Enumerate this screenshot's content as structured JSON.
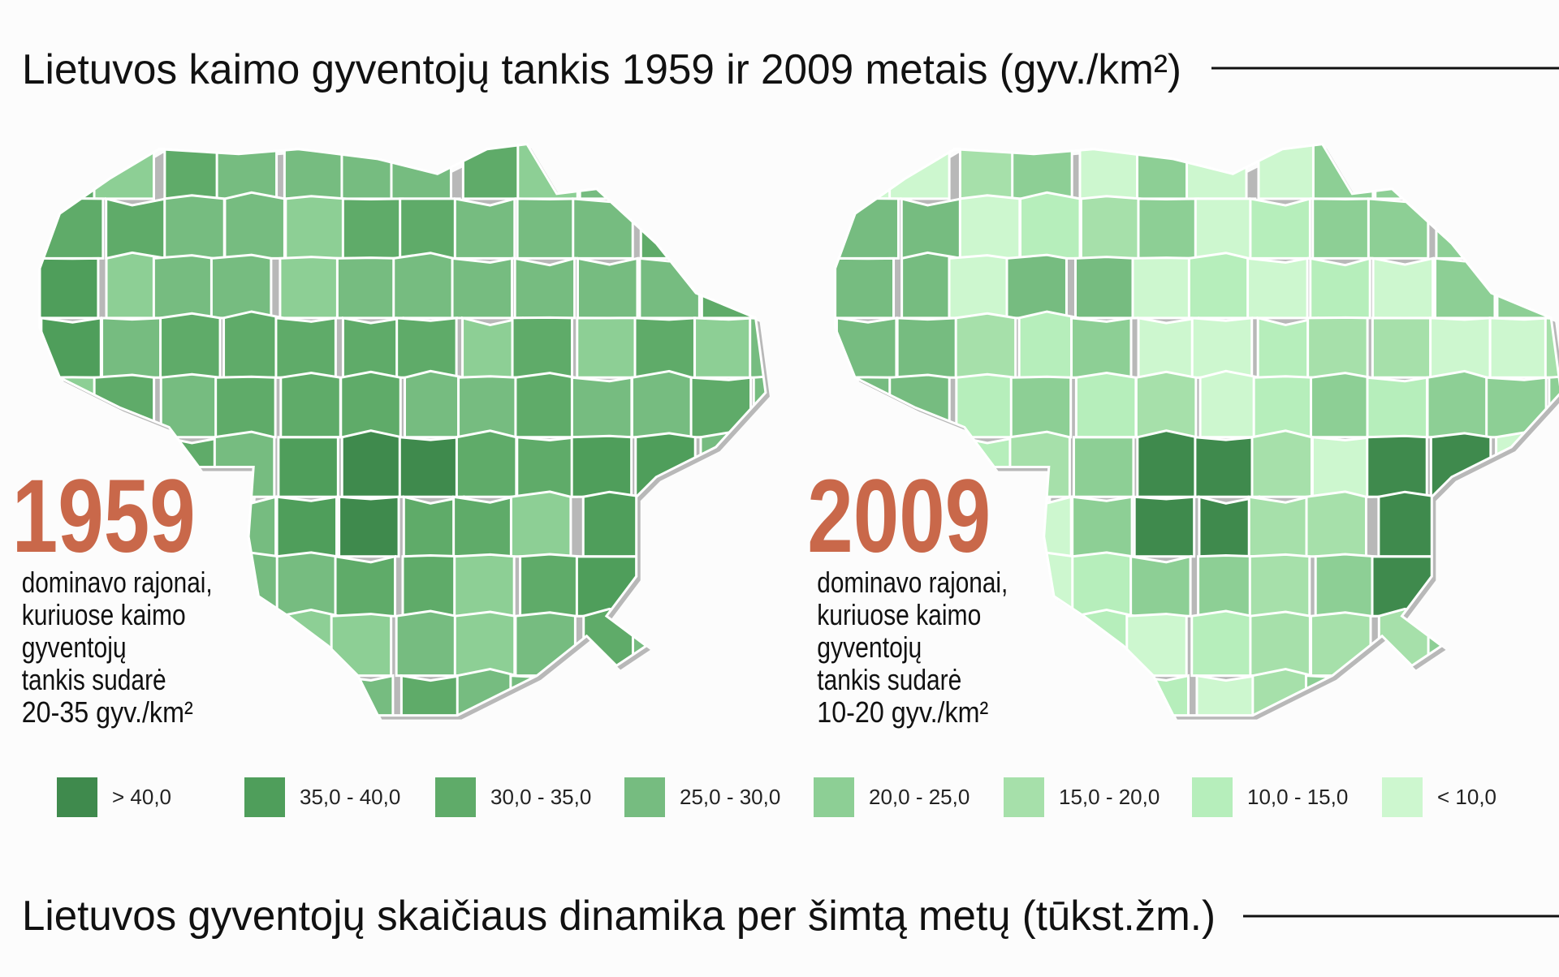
{
  "title": "Lietuvos kaimo gyventojų tankis 1959 ir 2009 metais (gyv./km²)",
  "maps": [
    {
      "year": "1959",
      "description": [
        "dominavo rajonai,",
        "kuriuose kaimo",
        "gyventojų",
        "tankis sudarė",
        "20-35 gyv./km²"
      ]
    },
    {
      "year": "2009",
      "description": [
        "dominavo rajonai,",
        "kuriuose kaimo",
        "gyventojų",
        "tankis sudarė",
        "10-20 gyv./km²"
      ]
    }
  ],
  "legend": [
    {
      "label": "> 40,0",
      "color": "#3f8a4d"
    },
    {
      "label": "35,0 - 40,0",
      "color": "#4f9e5b"
    },
    {
      "label": "30,0 - 35,0",
      "color": "#5fab69"
    },
    {
      "label": "25,0 - 30,0",
      "color": "#76bc80"
    },
    {
      "label": "20,0 - 25,0",
      "color": "#8dcf95"
    },
    {
      "label": "15,0 - 20,0",
      "color": "#a6e0aa"
    },
    {
      "label": "10,0 - 15,0",
      "color": "#b6eebb"
    },
    {
      "label": "< 10,0",
      "color": "#cdf7cf"
    }
  ],
  "subtitle": "Lietuvos gyventojų skaičiaus dinamika per šimtą metų (tūkst.žm.)"
}
